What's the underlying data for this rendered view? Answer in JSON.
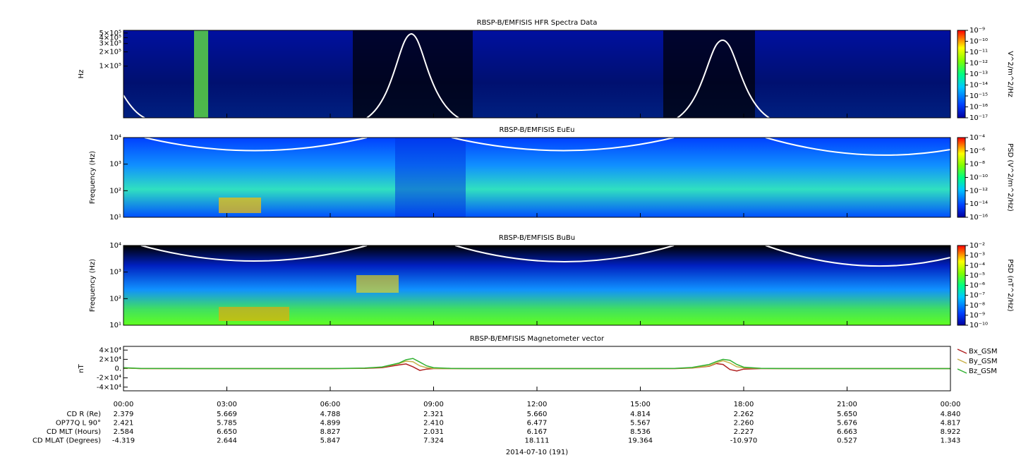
{
  "chart_data": [
    {
      "type": "spectrogram",
      "title": "RBSP-B/EMFISIS  HFR Spectra Data",
      "ylabel": "Hz",
      "log": true,
      "ylim": [
        8100,
        570000
      ],
      "yticks": [
        {
          "value": 100000,
          "label": "1×10⁵"
        },
        {
          "value": 200000,
          "label": "2×10⁵"
        },
        {
          "value": 300000,
          "label": "3×10⁵"
        },
        {
          "value": 400000,
          "label": "4×10⁵"
        },
        {
          "value": 500000,
          "label": "5×10⁵"
        }
      ],
      "colorbar": {
        "label": "V^2/m^2/Hz",
        "lim": [
          1e-17,
          1e-09
        ],
        "ticks": [
          {
            "value": 1e-17,
            "label": "10⁻¹⁷"
          },
          {
            "value": 1e-16,
            "label": "10⁻¹⁶"
          },
          {
            "value": 1e-15,
            "label": "10⁻¹⁵"
          },
          {
            "value": 1e-14,
            "label": "10⁻¹⁴"
          },
          {
            "value": 1e-13,
            "label": "10⁻¹³"
          },
          {
            "value": 1e-12,
            "label": "10⁻¹²"
          },
          {
            "value": 1e-11,
            "label": "10⁻¹¹"
          },
          {
            "value": 1e-10,
            "label": "10⁻¹⁰"
          },
          {
            "value": 1e-09,
            "label": "10⁻⁹"
          }
        ]
      }
    },
    {
      "type": "spectrogram",
      "title": "RBSP-B/EMFISIS  EuEu",
      "ylabel": "Frequency (Hz)",
      "log": true,
      "ylim": [
        10,
        10000
      ],
      "yticks": [
        {
          "value": 10,
          "label": "10¹"
        },
        {
          "value": 100,
          "label": "10²"
        },
        {
          "value": 1000,
          "label": "10³"
        },
        {
          "value": 10000,
          "label": "10⁴"
        }
      ],
      "colorbar": {
        "label": "PSD (V^2/m^2/Hz)",
        "lim": [
          1e-16,
          0.0001
        ],
        "ticks": [
          {
            "value": 1e-16,
            "label": "10⁻¹⁶"
          },
          {
            "value": 1e-14,
            "label": "10⁻¹⁴"
          },
          {
            "value": 1e-12,
            "label": "10⁻¹²"
          },
          {
            "value": 1e-10,
            "label": "10⁻¹⁰"
          },
          {
            "value": 1e-08,
            "label": "10⁻⁸"
          },
          {
            "value": 1e-06,
            "label": "10⁻⁶"
          },
          {
            "value": 0.0001,
            "label": "10⁻⁴"
          }
        ]
      }
    },
    {
      "type": "spectrogram",
      "title": "RBSP-B/EMFISIS  BuBu",
      "ylabel": "Frequency (Hz)",
      "log": true,
      "ylim": [
        10,
        10000
      ],
      "yticks": [
        {
          "value": 10,
          "label": "10¹"
        },
        {
          "value": 100,
          "label": "10²"
        },
        {
          "value": 1000,
          "label": "10³"
        },
        {
          "value": 10000,
          "label": "10⁴"
        }
      ],
      "colorbar": {
        "label": "PSD (nT^2/Hz)",
        "lim": [
          1e-10,
          0.01
        ],
        "ticks": [
          {
            "value": 1e-10,
            "label": "10⁻¹⁰"
          },
          {
            "value": 1e-09,
            "label": "10⁻⁹"
          },
          {
            "value": 1e-08,
            "label": "10⁻⁸"
          },
          {
            "value": 1e-07,
            "label": "10⁻⁷"
          },
          {
            "value": 1e-06,
            "label": "10⁻⁶"
          },
          {
            "value": 1e-05,
            "label": "10⁻⁵"
          },
          {
            "value": 0.0001,
            "label": "10⁻⁴"
          },
          {
            "value": 0.001,
            "label": "10⁻³"
          },
          {
            "value": 0.01,
            "label": "10⁻²"
          }
        ]
      }
    },
    {
      "type": "line",
      "title": "RBSP-B/EMFISIS  Magnetometer vector",
      "ylabel": "nT",
      "xlabel": "2014-07-10 (191)",
      "ylim": [
        -48000,
        48000
      ],
      "yticks": [
        {
          "value": -40000,
          "label": "-4×10⁴"
        },
        {
          "value": -20000,
          "label": "-2×10⁴"
        },
        {
          "value": 0,
          "label": "0."
        },
        {
          "value": 20000,
          "label": "2×10⁴"
        },
        {
          "value": 40000,
          "label": "4×10⁴"
        }
      ],
      "xlim": [
        0,
        24
      ],
      "xticks": [
        {
          "value": 0,
          "label": "00:00"
        },
        {
          "value": 3,
          "label": "03:00"
        },
        {
          "value": 6,
          "label": "06:00"
        },
        {
          "value": 9,
          "label": "09:00"
        },
        {
          "value": 12,
          "label": "12:00"
        },
        {
          "value": 15,
          "label": "15:00"
        },
        {
          "value": 18,
          "label": "18:00"
        },
        {
          "value": 21,
          "label": "21:00"
        },
        {
          "value": 24,
          "label": "00:00"
        }
      ],
      "x": [
        0,
        0.5,
        2,
        4,
        6,
        7,
        7.5,
        8,
        8.2,
        8.4,
        8.6,
        8.8,
        9,
        9.5,
        10,
        12,
        15,
        16,
        16.5,
        17,
        17.2,
        17.4,
        17.6,
        17.8,
        18,
        18.5,
        19,
        21,
        24
      ],
      "series": [
        {
          "name": "Bx_GSM",
          "color": "#b02020",
          "values": [
            1500,
            0,
            0,
            0,
            0,
            500,
            2000,
            8000,
            10000,
            4000,
            -4000,
            -1000,
            0,
            0,
            0,
            0,
            0,
            0,
            1000,
            5000,
            11000,
            9000,
            -2000,
            -5000,
            -1000,
            0,
            0,
            0,
            0
          ]
        },
        {
          "name": "By_GSM",
          "color": "#c8b048",
          "values": [
            1000,
            0,
            0,
            0,
            0,
            800,
            3000,
            11000,
            16000,
            15000,
            6000,
            2000,
            500,
            0,
            0,
            0,
            0,
            300,
            1500,
            6000,
            12000,
            17000,
            12000,
            4000,
            1500,
            300,
            0,
            0,
            0
          ]
        },
        {
          "name": "Bz_GSM",
          "color": "#30b030",
          "values": [
            2000,
            500,
            0,
            0,
            0,
            1000,
            3500,
            12000,
            19000,
            22000,
            14000,
            6000,
            2000,
            500,
            0,
            0,
            0,
            500,
            2500,
            9000,
            15000,
            20000,
            18000,
            9000,
            3000,
            600,
            100,
            0,
            0
          ]
        }
      ],
      "ephemeris": [
        {
          "label": "CD R (Re)",
          "values": [
            "2.379",
            "5.669",
            "4.788",
            "2.321",
            "5.660",
            "4.814",
            "2.262",
            "5.650",
            "4.840"
          ]
        },
        {
          "label": "OP77Q L 90°",
          "values": [
            "2.421",
            "5.785",
            "4.899",
            "2.410",
            "6.477",
            "5.567",
            "2.260",
            "5.676",
            "4.817"
          ]
        },
        {
          "label": "CD MLT (Hours)",
          "values": [
            "2.584",
            "6.650",
            "8.827",
            "2.031",
            "6.167",
            "8.536",
            "2.227",
            "6.663",
            "8.922"
          ]
        },
        {
          "label": "CD MLAT (Degrees)",
          "values": [
            "-4.319",
            "2.644",
            "5.847",
            "7.324",
            "18.111",
            "19.364",
            "-10.970",
            "0.527",
            "1.343"
          ]
        }
      ]
    }
  ]
}
